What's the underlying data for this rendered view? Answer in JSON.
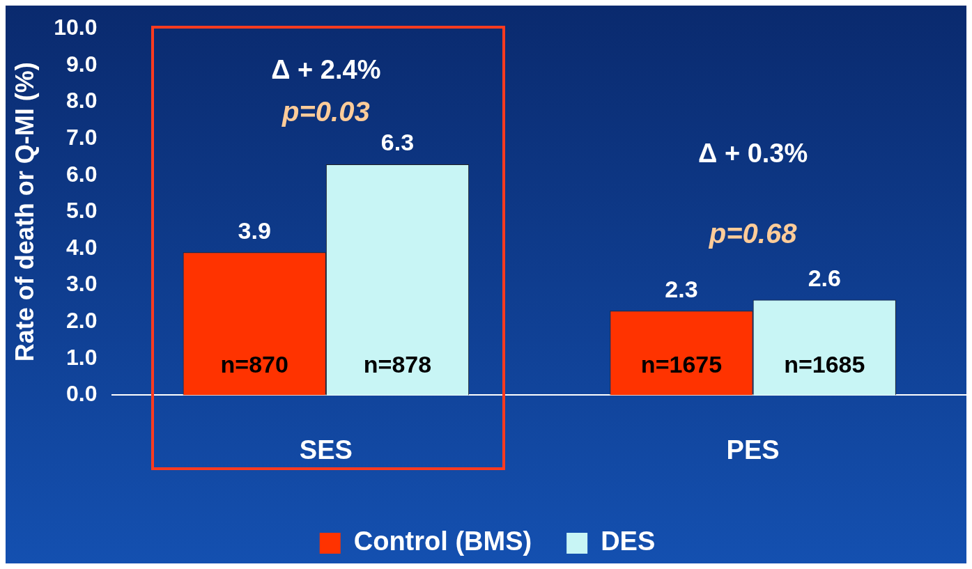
{
  "chart_data": {
    "type": "bar",
    "ylabel": "Rate of death or Q-MI (%)",
    "categories": [
      "SES",
      "PES"
    ],
    "series": [
      {
        "name": "Control (BMS)",
        "color": "#ff3300",
        "values": [
          3.9,
          2.3
        ]
      },
      {
        "name": "DES",
        "color": "#c8f5f5",
        "values": [
          6.3,
          2.6
        ]
      }
    ],
    "ylim": [
      0,
      10
    ],
    "yticks": [
      {
        "value": 0,
        "label": "0.0"
      },
      {
        "value": 1,
        "label": "1.0"
      },
      {
        "value": 2,
        "label": "2.0"
      },
      {
        "value": 3,
        "label": "3.0"
      },
      {
        "value": 4,
        "label": "4.0"
      },
      {
        "value": 5,
        "label": "5.0"
      },
      {
        "value": 6,
        "label": "6.0"
      },
      {
        "value": 7,
        "label": "7.0"
      },
      {
        "value": 8,
        "label": "8.0"
      },
      {
        "value": 9,
        "label": "9.0"
      },
      {
        "value": 10,
        "label": "10.0"
      }
    ],
    "grid": false,
    "legend": "bottom",
    "data_labels": true,
    "annotations": [
      "Δ + 2.4%",
      "p=0.03",
      "Δ + 0.3%",
      "p=0.68",
      "n=870",
      "n=878",
      "n=1675",
      "n=1685"
    ]
  }
}
